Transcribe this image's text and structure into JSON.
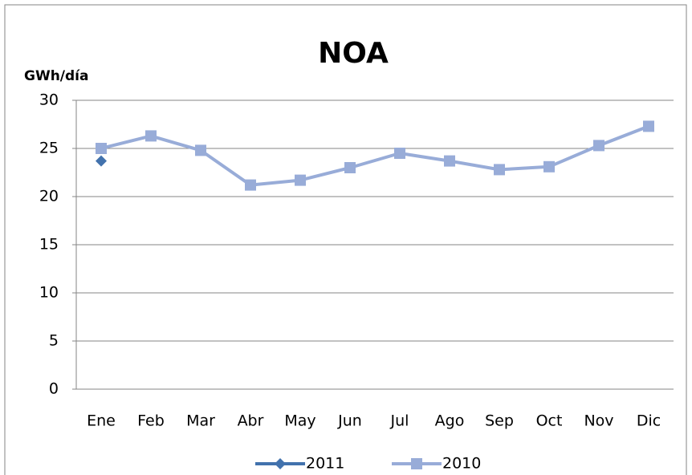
{
  "chart_data": {
    "type": "line",
    "title": "NOA",
    "y_label": "GWh/día",
    "categories": [
      "Ene",
      "Feb",
      "Mar",
      "Abr",
      "May",
      "Jun",
      "Jul",
      "Ago",
      "Sep",
      "Oct",
      "Nov",
      "Dic"
    ],
    "series": [
      {
        "name": "2011",
        "color": "#4272ad",
        "marker": "diamond",
        "values": [
          23.7,
          null,
          null,
          null,
          null,
          null,
          null,
          null,
          null,
          null,
          null,
          null
        ]
      },
      {
        "name": "2010",
        "color": "#98acd8",
        "marker": "square",
        "values": [
          25.0,
          26.3,
          24.8,
          21.2,
          21.7,
          23.0,
          24.5,
          23.7,
          22.8,
          23.1,
          25.3,
          27.3
        ]
      }
    ],
    "ylim": [
      0,
      30
    ],
    "yticks": [
      0,
      5,
      10,
      15,
      20,
      25,
      30
    ],
    "grid": true,
    "legend": "bottom"
  }
}
